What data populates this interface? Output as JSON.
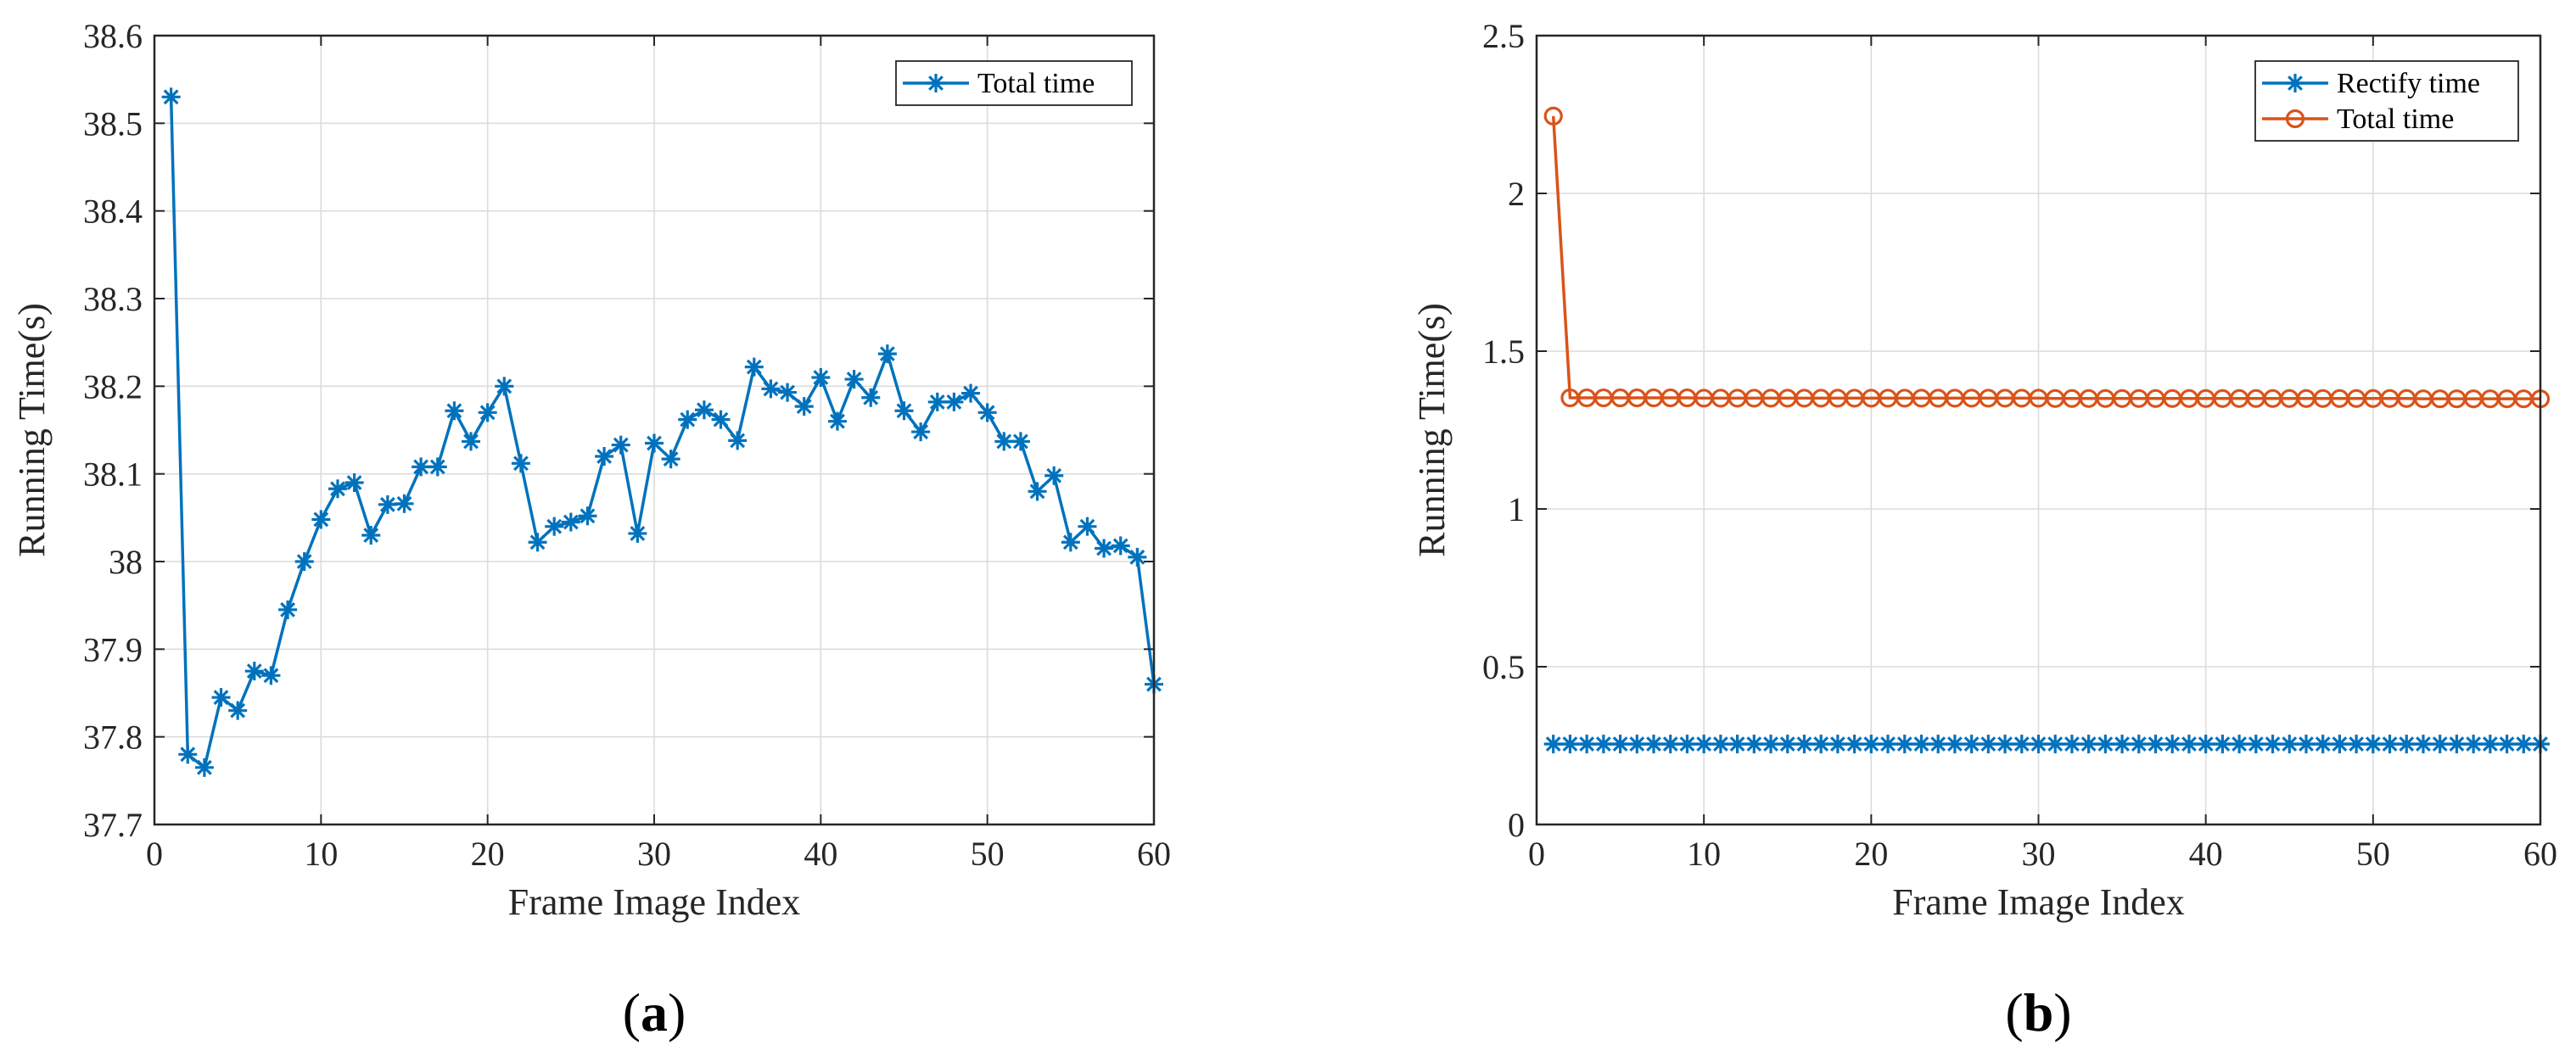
{
  "chart_data": [
    {
      "type": "line",
      "panel": "a",
      "caption_letter": "a",
      "title": "",
      "xlabel": "Frame Image Index",
      "ylabel": "Running Time(s)",
      "xlim": [
        0,
        60
      ],
      "ylim": [
        37.7,
        38.6
      ],
      "xticks": [
        0,
        10,
        20,
        30,
        40,
        50,
        60
      ],
      "xtick_labels": [
        "0",
        "10",
        "20",
        "30",
        "40",
        "50",
        "60"
      ],
      "yticks": [
        37.7,
        37.8,
        37.9,
        38.0,
        38.1,
        38.2,
        38.3,
        38.4,
        38.5,
        38.6
      ],
      "ytick_labels": [
        "37.7",
        "37.8",
        "37.9",
        "38",
        "38.1",
        "38.2",
        "38.3",
        "38.4",
        "38.5",
        "38.6"
      ],
      "grid": true,
      "legend_position": "top-right",
      "series": [
        {
          "name": "Total time",
          "color": "#0072BD",
          "marker": "asterisk",
          "x": [
            1,
            2,
            3,
            4,
            5,
            6,
            7,
            8,
            9,
            10,
            11,
            12,
            13,
            14,
            15,
            16,
            17,
            18,
            19,
            20,
            21,
            22,
            23,
            24,
            25,
            26,
            27,
            28,
            29,
            30,
            31,
            32,
            33,
            34,
            35,
            36,
            37,
            38,
            39,
            40,
            41,
            42,
            43,
            44,
            45,
            46,
            47,
            48,
            49,
            50,
            51,
            52,
            53,
            54,
            55,
            56,
            57,
            58,
            59,
            60
          ],
          "values": [
            38.53,
            37.78,
            37.765,
            37.845,
            37.83,
            37.875,
            37.87,
            37.945,
            38.0,
            38.048,
            38.083,
            38.09,
            38.03,
            38.065,
            38.066,
            38.108,
            38.108,
            38.172,
            38.137,
            38.17,
            38.2,
            38.112,
            38.022,
            38.04,
            38.045,
            38.052,
            38.12,
            38.133,
            38.032,
            38.135,
            38.117,
            38.162,
            38.173,
            38.162,
            38.138,
            38.222,
            38.197,
            38.193,
            38.177,
            38.21,
            38.16,
            38.208,
            38.187,
            38.237,
            38.172,
            38.148,
            38.182,
            38.182,
            38.192,
            38.17,
            38.137,
            38.137,
            38.08,
            38.098,
            38.022,
            38.04,
            38.015,
            38.018,
            38.005,
            37.86
          ]
        }
      ]
    },
    {
      "type": "line",
      "panel": "b",
      "caption_letter": "b",
      "title": "",
      "xlabel": "Frame Image Index",
      "ylabel": "Running Time(s)",
      "xlim": [
        0,
        60
      ],
      "ylim": [
        0,
        2.5
      ],
      "xticks": [
        0,
        10,
        20,
        30,
        40,
        50,
        60
      ],
      "xtick_labels": [
        "0",
        "10",
        "20",
        "30",
        "40",
        "50",
        "60"
      ],
      "yticks": [
        0,
        0.5,
        1,
        1.5,
        2,
        2.5
      ],
      "ytick_labels": [
        "0",
        "0.5",
        "1",
        "1.5",
        "2",
        "2.5"
      ],
      "grid": true,
      "legend_position": "top-right",
      "series": [
        {
          "name": "Rectify time",
          "color": "#0072BD",
          "marker": "asterisk",
          "x": [
            1,
            2,
            3,
            4,
            5,
            6,
            7,
            8,
            9,
            10,
            11,
            12,
            13,
            14,
            15,
            16,
            17,
            18,
            19,
            20,
            21,
            22,
            23,
            24,
            25,
            26,
            27,
            28,
            29,
            30,
            31,
            32,
            33,
            34,
            35,
            36,
            37,
            38,
            39,
            40,
            41,
            42,
            43,
            44,
            45,
            46,
            47,
            48,
            49,
            50,
            51,
            52,
            53,
            54,
            55,
            56,
            57,
            58,
            59,
            60
          ],
          "values": [
            0.255,
            0.255,
            0.255,
            0.255,
            0.255,
            0.255,
            0.255,
            0.255,
            0.255,
            0.255,
            0.255,
            0.255,
            0.255,
            0.255,
            0.255,
            0.255,
            0.255,
            0.255,
            0.255,
            0.255,
            0.255,
            0.255,
            0.255,
            0.255,
            0.255,
            0.255,
            0.255,
            0.255,
            0.255,
            0.255,
            0.255,
            0.255,
            0.255,
            0.255,
            0.255,
            0.255,
            0.255,
            0.255,
            0.255,
            0.255,
            0.255,
            0.255,
            0.255,
            0.255,
            0.255,
            0.255,
            0.255,
            0.255,
            0.255,
            0.255,
            0.255,
            0.255,
            0.255,
            0.255,
            0.255,
            0.255,
            0.255,
            0.255,
            0.255,
            0.255
          ]
        },
        {
          "name": "Total time",
          "color": "#D95319",
          "marker": "circle",
          "x": [
            1,
            2,
            3,
            4,
            5,
            6,
            7,
            8,
            9,
            10,
            11,
            12,
            13,
            14,
            15,
            16,
            17,
            18,
            19,
            20,
            21,
            22,
            23,
            24,
            25,
            26,
            27,
            28,
            29,
            30,
            31,
            32,
            33,
            34,
            35,
            36,
            37,
            38,
            39,
            40,
            41,
            42,
            43,
            44,
            45,
            46,
            47,
            48,
            49,
            50,
            51,
            52,
            53,
            54,
            55,
            56,
            57,
            58,
            59,
            60
          ],
          "values": [
            2.245,
            1.352,
            1.352,
            1.352,
            1.352,
            1.352,
            1.352,
            1.352,
            1.352,
            1.351,
            1.351,
            1.351,
            1.351,
            1.351,
            1.351,
            1.351,
            1.351,
            1.351,
            1.351,
            1.351,
            1.351,
            1.351,
            1.351,
            1.351,
            1.351,
            1.351,
            1.351,
            1.351,
            1.351,
            1.351,
            1.35,
            1.35,
            1.35,
            1.35,
            1.35,
            1.35,
            1.35,
            1.35,
            1.35,
            1.35,
            1.35,
            1.35,
            1.35,
            1.35,
            1.35,
            1.35,
            1.35,
            1.35,
            1.35,
            1.35,
            1.35,
            1.35,
            1.349,
            1.349,
            1.349,
            1.349,
            1.349,
            1.349,
            1.349,
            1.349
          ]
        }
      ]
    }
  ]
}
